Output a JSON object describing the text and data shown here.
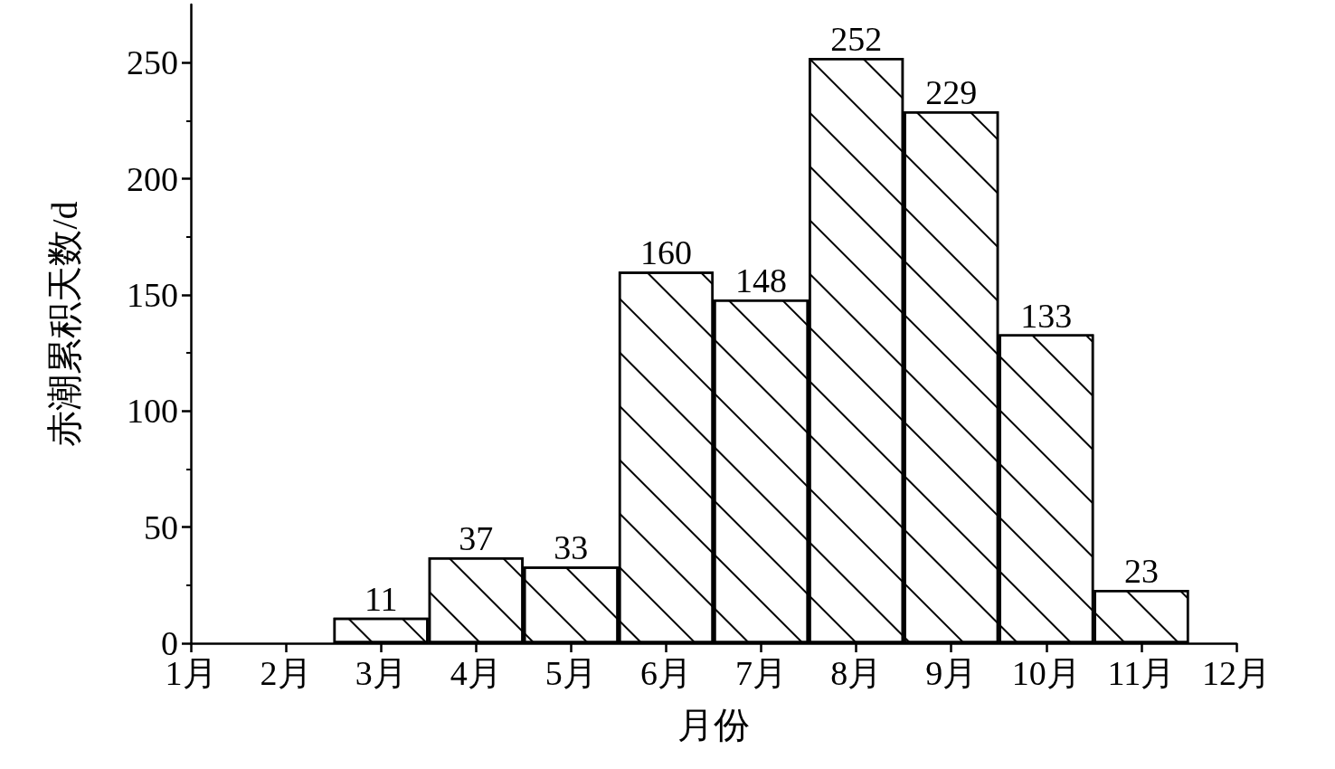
{
  "chart_data": {
    "type": "bar",
    "xlabel": "月份",
    "ylabel": "赤潮累积天数/d",
    "categories": [
      "1月",
      "2月",
      "3月",
      "4月",
      "5月",
      "6月",
      "7月",
      "8月",
      "9月",
      "10月",
      "11月",
      "12月"
    ],
    "values": [
      null,
      null,
      11,
      37,
      33,
      160,
      148,
      252,
      229,
      133,
      23,
      null
    ],
    "color": "#ffffff",
    "ylim": [
      0,
      275
    ],
    "yticks": [
      0,
      50,
      100,
      150,
      200,
      250
    ],
    "grid": false,
    "data_labels": true
  }
}
